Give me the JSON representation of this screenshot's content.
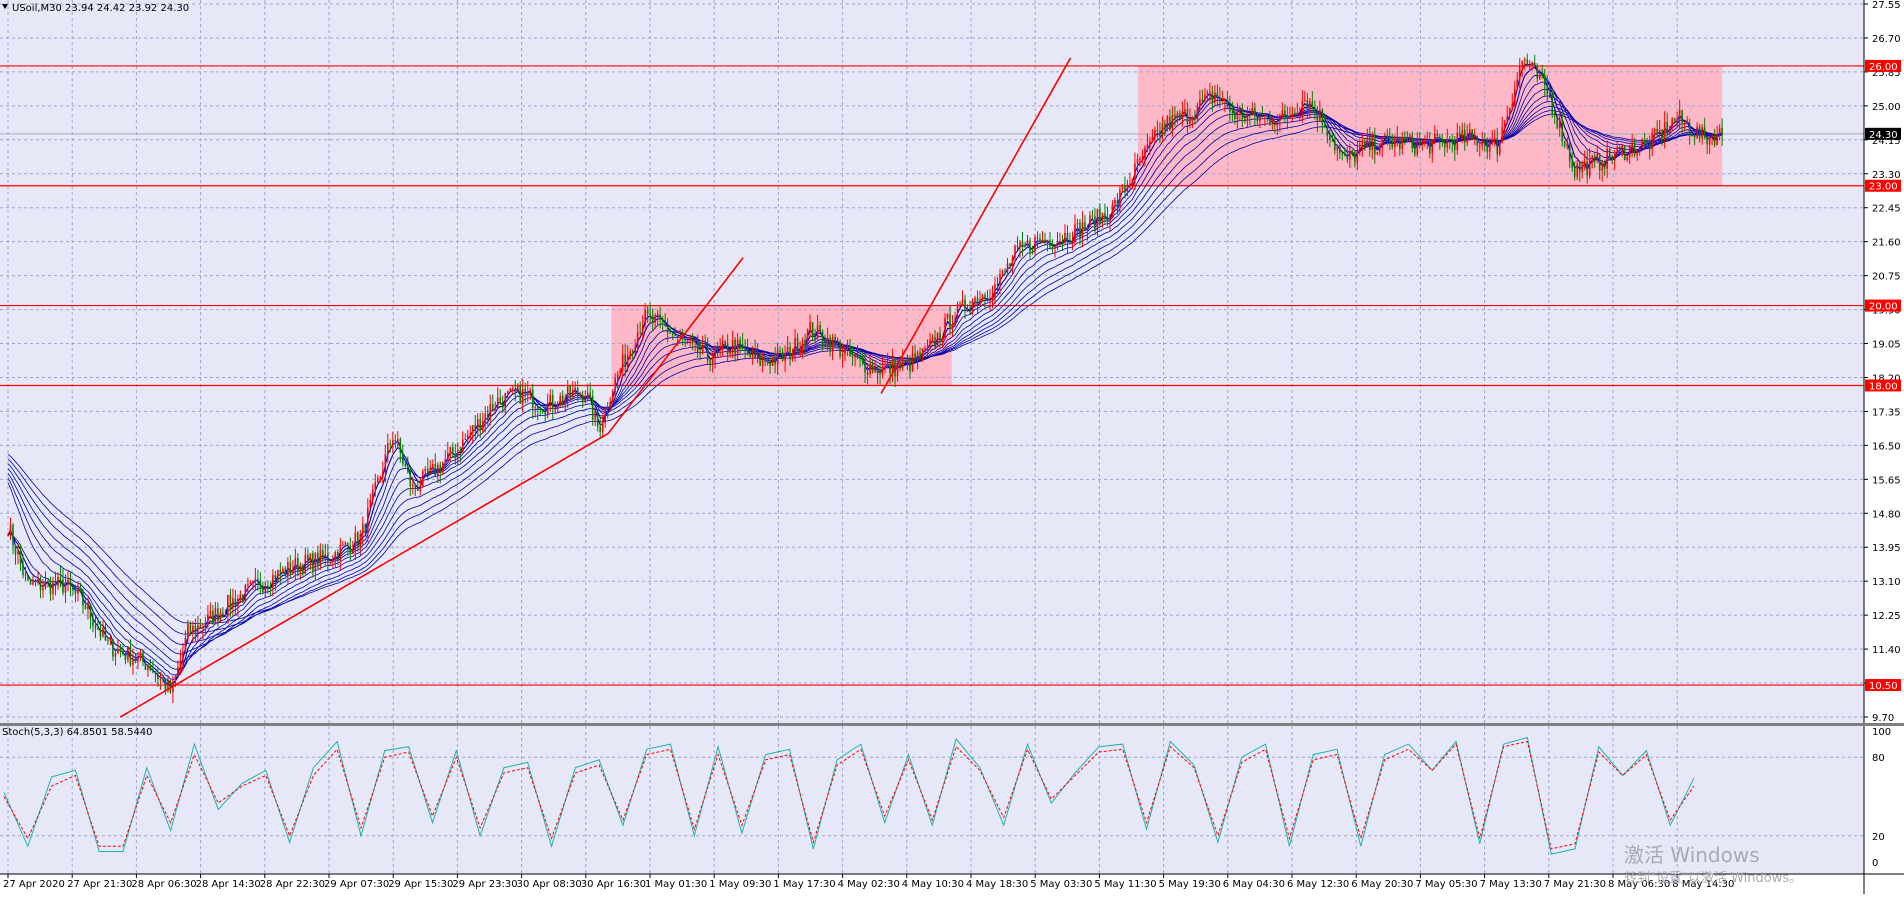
{
  "header": {
    "symbol_line": "USoil,M30  23.94 24.42 23.92 24.30"
  },
  "stoch": {
    "label": "Stoch(5,3,3) 64.8501 58.5440"
  },
  "watermark": {
    "line1": "激活 Windows",
    "line2": "转到\"设置\"以激活 Windows。"
  },
  "colors": {
    "background": "#e6e8f8",
    "grid": "#9ea3cb",
    "hline": "#ff0000",
    "zone": "#ffb8c8",
    "bull": "#ff0000",
    "bear": "#008000",
    "ma": "#0000aa",
    "stoch_main": "#20b2aa",
    "stoch_signal": "#ff0000"
  },
  "chart_data": [
    {
      "type": "line",
      "title": "USoil,M30",
      "ylim": [
        9.7,
        27.55
      ],
      "y_ticks": [
        "27.55",
        "26.70",
        "25.85",
        "25.00",
        "24.15",
        "23.30",
        "22.45",
        "21.60",
        "20.75",
        "19.90",
        "19.05",
        "18.20",
        "17.35",
        "16.50",
        "15.65",
        "14.80",
        "13.95",
        "13.10",
        "12.25",
        "11.40",
        "10.55",
        "9.70"
      ],
      "x_ticks": [
        "27 Apr 2020",
        "27 Apr 21:30",
        "28 Apr 06:30",
        "28 Apr 14:30",
        "28 Apr 22:30",
        "29 Apr 07:30",
        "29 Apr 15:30",
        "29 Apr 23:30",
        "30 Apr 08:30",
        "30 Apr 16:30",
        "1 May 01:30",
        "1 May 09:30",
        "1 May 17:30",
        "4 May 02:30",
        "4 May 10:30",
        "4 May 18:30",
        "5 May 03:30",
        "5 May 11:30",
        "5 May 19:30",
        "6 May 04:30",
        "6 May 12:30",
        "6 May 20:30",
        "7 May 05:30",
        "7 May 13:30",
        "7 May 21:30",
        "8 May 06:30",
        "8 May 14:30"
      ],
      "price_path": [
        [
          0,
          14.5
        ],
        [
          0.3,
          13.0
        ],
        [
          0.6,
          13.0
        ],
        [
          0.9,
          13.0
        ],
        [
          1.2,
          12.5
        ],
        [
          1.55,
          11.5
        ],
        [
          2.2,
          11.0
        ],
        [
          2.55,
          10.3
        ],
        [
          2.8,
          11.8
        ],
        [
          3.1,
          12.1
        ],
        [
          3.5,
          12.6
        ],
        [
          4.0,
          13.1
        ],
        [
          4.5,
          13.5
        ],
        [
          5.0,
          13.7
        ],
        [
          5.5,
          14.2
        ],
        [
          6.0,
          16.8
        ],
        [
          6.3,
          15.4
        ],
        [
          6.6,
          15.8
        ],
        [
          7.0,
          16.4
        ],
        [
          7.4,
          17.2
        ],
        [
          7.6,
          17.6
        ],
        [
          8.0,
          17.8
        ],
        [
          8.4,
          17.5
        ],
        [
          8.8,
          17.8
        ],
        [
          9.0,
          17.8
        ],
        [
          9.2,
          16.9
        ],
        [
          9.4,
          17.9
        ],
        [
          9.9,
          19.7
        ],
        [
          10.2,
          19.5
        ],
        [
          10.5,
          19.1
        ],
        [
          10.9,
          18.7
        ],
        [
          11.3,
          19.0
        ],
        [
          11.7,
          18.6
        ],
        [
          12.1,
          18.7
        ],
        [
          12.5,
          19.4
        ],
        [
          12.9,
          19.0
        ],
        [
          13.2,
          18.6
        ],
        [
          13.6,
          18.4
        ],
        [
          14.0,
          18.5
        ],
        [
          14.3,
          18.8
        ],
        [
          14.7,
          19.7
        ],
        [
          15.0,
          20.1
        ],
        [
          15.4,
          20.5
        ],
        [
          15.7,
          21.3
        ],
        [
          16.0,
          21.6
        ],
        [
          16.4,
          21.7
        ],
        [
          16.8,
          22.0
        ],
        [
          17.2,
          22.4
        ],
        [
          17.6,
          23.5
        ],
        [
          18.0,
          24.5
        ],
        [
          18.4,
          24.8
        ],
        [
          18.8,
          25.3
        ],
        [
          19.1,
          24.8
        ],
        [
          19.5,
          24.7
        ],
        [
          19.9,
          24.7
        ],
        [
          20.2,
          25.2
        ],
        [
          20.5,
          24.6
        ],
        [
          20.8,
          23.6
        ],
        [
          21.2,
          24.0
        ],
        [
          21.6,
          24.1
        ],
        [
          22.0,
          24.0
        ],
        [
          22.4,
          24.1
        ],
        [
          22.8,
          24.2
        ],
        [
          23.2,
          24.0
        ],
        [
          23.6,
          26.2
        ],
        [
          24.0,
          25.3
        ],
        [
          24.4,
          23.4
        ],
        [
          24.8,
          23.6
        ],
        [
          25.2,
          23.9
        ],
        [
          25.6,
          24.1
        ],
        [
          26.0,
          24.7
        ],
        [
          26.4,
          24.2
        ],
        [
          26.7,
          24.3
        ]
      ]
    },
    {
      "type": "line",
      "title": "Stoch(5,3,3)",
      "ylim": [
        0,
        100
      ],
      "y_ticks": [
        "100",
        "80",
        "20",
        "0"
      ],
      "series": [
        {
          "name": "main",
          "values": [
            53,
            12,
            65,
            70,
            8,
            8,
            72,
            24,
            90,
            40,
            60,
            70,
            15,
            72,
            92,
            20,
            85,
            88,
            30,
            85,
            20,
            72,
            76,
            12,
            72,
            78,
            28,
            86,
            90,
            20,
            88,
            22,
            82,
            86,
            10,
            78,
            90,
            30,
            82,
            28,
            94,
            72,
            28,
            90,
            45,
            68,
            88,
            90,
            25,
            92,
            74,
            15,
            80,
            90,
            12,
            82,
            86,
            12,
            82,
            90,
            70,
            92,
            14,
            90,
            95,
            6,
            10,
            88,
            66,
            85,
            28,
            64
          ]
        },
        {
          "name": "signal",
          "values": [
            50,
            18,
            58,
            66,
            12,
            12,
            66,
            30,
            82,
            45,
            58,
            66,
            20,
            66,
            86,
            26,
            80,
            84,
            35,
            80,
            26,
            68,
            72,
            18,
            68,
            74,
            32,
            82,
            86,
            25,
            82,
            28,
            78,
            82,
            15,
            74,
            86,
            35,
            78,
            32,
            88,
            70,
            34,
            86,
            48,
            66,
            84,
            86,
            30,
            88,
            72,
            20,
            76,
            86,
            18,
            78,
            82,
            18,
            78,
            86,
            70,
            90,
            18,
            88,
            92,
            10,
            14,
            84,
            66,
            82,
            32,
            58
          ]
        }
      ]
    }
  ]
}
